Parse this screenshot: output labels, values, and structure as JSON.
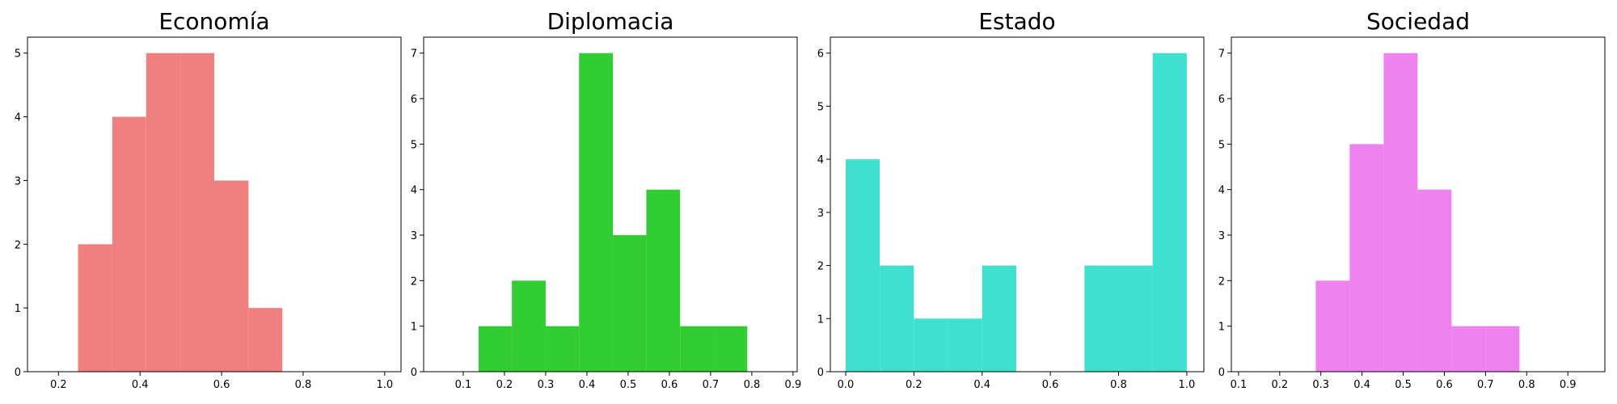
{
  "chart_data": [
    {
      "type": "histogram",
      "title": "Economía",
      "color": "#f08080",
      "bins": [
        0.248,
        0.332,
        0.415,
        0.499,
        0.582,
        0.666,
        0.749
      ],
      "values": [
        2,
        4,
        5,
        5,
        3,
        1
      ],
      "xlim": [
        0.124,
        1.04
      ],
      "xticks": [
        0.2,
        0.4,
        0.6,
        0.8,
        {
          "value": 1,
          "label": "1.0"
        }
      ],
      "ylim": [
        0,
        5.25
      ],
      "yticks": [
        0,
        1,
        2,
        3,
        4,
        5
      ]
    },
    {
      "type": "histogram",
      "title": "Diplomacia",
      "color": "#32cd32",
      "bins": [
        0.137,
        0.218,
        0.3,
        0.381,
        0.463,
        0.544,
        0.626,
        0.707,
        0.789
      ],
      "values": [
        1,
        2,
        1,
        7,
        3,
        4,
        1,
        1
      ],
      "xlim": [
        0.004,
        0.91
      ],
      "xticks": [
        0.1,
        0.2,
        0.3,
        0.4,
        0.5,
        0.6,
        0.7,
        0.8,
        0.9
      ],
      "ylim": [
        0,
        7.35
      ],
      "yticks": [
        0,
        1,
        2,
        3,
        4,
        5,
        6,
        7
      ]
    },
    {
      "type": "histogram",
      "title": "Estado",
      "color": "#40e0d0",
      "bins": [
        0,
        0.1,
        0.2,
        0.3,
        0.4,
        0.5,
        0.6,
        0.7,
        0.8,
        0.9,
        1
      ],
      "values": [
        4,
        2,
        1,
        1,
        2,
        0,
        0,
        2,
        2,
        6
      ],
      "xlim": [
        -0.045,
        1.05
      ],
      "xticks": [
        {
          "value": 0,
          "label": "0.0"
        },
        0.2,
        0.4,
        0.6,
        0.8,
        {
          "value": 1,
          "label": "1.0"
        }
      ],
      "ylim": [
        0,
        6.3
      ],
      "yticks": [
        0,
        1,
        2,
        3,
        4,
        5,
        6
      ]
    },
    {
      "type": "histogram",
      "title": "Sociedad",
      "color": "#ee82ee",
      "bins": [
        0.2875,
        0.37,
        0.4525,
        0.535,
        0.6175,
        0.7,
        0.7825
      ],
      "values": [
        2,
        5,
        7,
        4,
        1,
        1
      ],
      "xlim": [
        0.0825,
        0.99
      ],
      "xticks": [
        0.1,
        0.2,
        0.3,
        0.4,
        0.5,
        0.6,
        0.7,
        0.8,
        0.9
      ],
      "ylim": [
        0,
        7.35
      ],
      "yticks": [
        0,
        1,
        2,
        3,
        4,
        5,
        6,
        7
      ]
    }
  ]
}
